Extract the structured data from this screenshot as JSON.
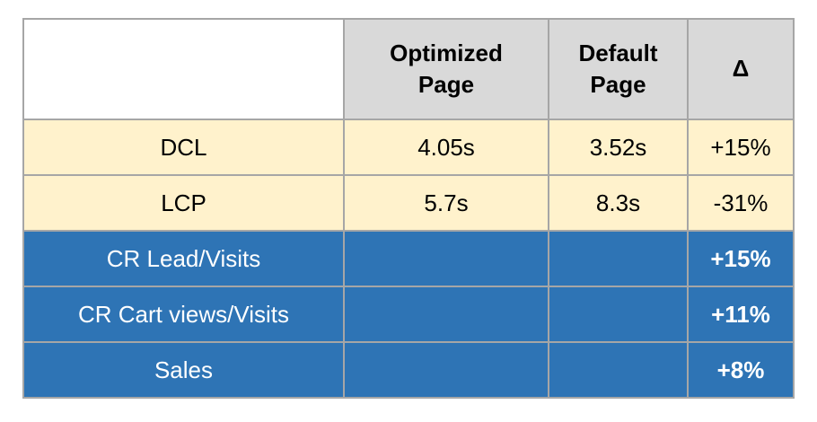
{
  "chart_data": {
    "type": "table",
    "columns": [
      "",
      "Optimized Page",
      "Default Page",
      "Δ"
    ],
    "rows": [
      [
        "DCL",
        "4.05s",
        "3.52s",
        "+15%"
      ],
      [
        "LCP",
        "5.7s",
        "8.3s",
        "-31%"
      ],
      [
        "CR Lead/Visits",
        "",
        "",
        "+15%"
      ],
      [
        "CR Cart views/Visits",
        "",
        "",
        "+11%"
      ],
      [
        "Sales",
        "",
        "",
        "+8%"
      ]
    ],
    "row_themes": [
      "cream",
      "cream",
      "blue",
      "blue",
      "blue"
    ],
    "layout_hints": {
      "header_background": "#d9d9d9",
      "cream_row_background": "#fff2cc",
      "blue_row_background": "#2e74b5",
      "border_color": "#a6a6a6",
      "dark_text": "#000000",
      "light_text": "#ffffff",
      "blue_delta_bold": true,
      "header_bold": true
    }
  }
}
